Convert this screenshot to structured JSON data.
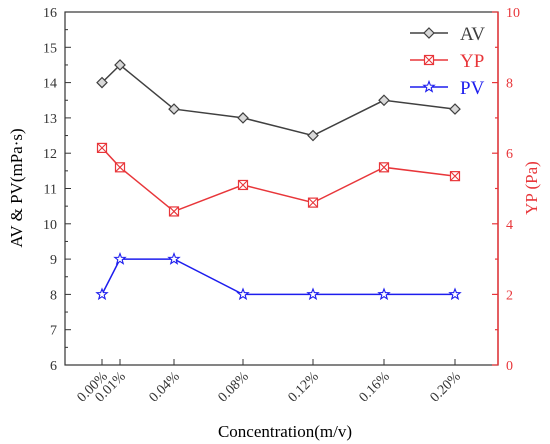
{
  "chart_data": {
    "type": "line",
    "x_categories": [
      "0.00%",
      "0.01%",
      "0.04%",
      "0.08%",
      "0.12%",
      "0.16%",
      "0.20%"
    ],
    "x_values": [
      0.0,
      0.01,
      0.04,
      0.08,
      0.12,
      0.16,
      0.2
    ],
    "xlabel": "Concentration(m/v)",
    "ylabel_left": "AV & PV(mPa·s)",
    "ylabel_right": "YP (Pa)",
    "ylim_left": [
      6,
      16
    ],
    "ylim_right": [
      0,
      10
    ],
    "yticks_left": [
      "6",
      "7",
      "8",
      "9",
      "10",
      "11",
      "12",
      "13",
      "14",
      "15",
      "16"
    ],
    "yticks_right": [
      "0",
      "2",
      "4",
      "6",
      "8",
      "10"
    ],
    "legend_position": "top-right",
    "grid": false,
    "series": [
      {
        "name": "AV",
        "axis": "left",
        "color": "#404040",
        "marker": "diamond",
        "values": [
          14.0,
          14.5,
          13.25,
          13.0,
          12.5,
          13.5,
          13.25
        ]
      },
      {
        "name": "YP",
        "axis": "right",
        "color": "#e8363a",
        "marker": "crossed-square",
        "values": [
          6.15,
          5.6,
          4.35,
          5.1,
          4.6,
          5.6,
          5.35
        ]
      },
      {
        "name": "PV",
        "axis": "left",
        "color": "#1d1dee",
        "marker": "star",
        "values": [
          8,
          9,
          9,
          8,
          8,
          8,
          8
        ]
      }
    ]
  }
}
